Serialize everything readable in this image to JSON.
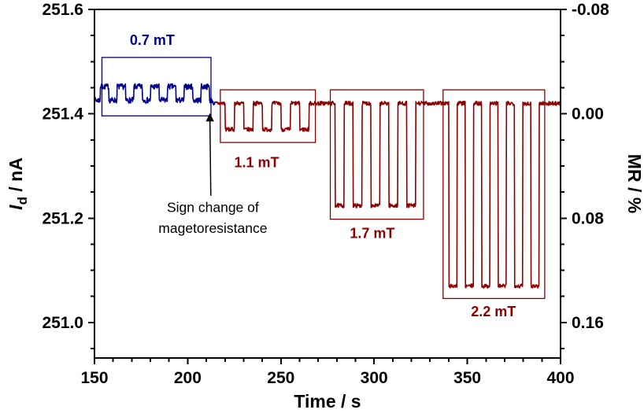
{
  "figure": {
    "background": "#ffffff"
  },
  "chart_data": {
    "type": "line",
    "title": "",
    "xlabel": "Time / s",
    "ylabel_left": {
      "italic": "I",
      "sub": "d",
      "rest": " / nA"
    },
    "ylabel_right": "MR / %",
    "xlim": [
      150,
      400
    ],
    "ylim": [
      250.932,
      251.6
    ],
    "x_ticks": [
      150,
      200,
      250,
      300,
      350,
      400
    ],
    "x_minor_step": 10,
    "y_ticks_left": [
      251.0,
      251.2,
      251.4,
      251.6
    ],
    "y_minor_step": 0.05,
    "y_ticks_right": [
      {
        "label": "-0.08",
        "at": 251.6
      },
      {
        "label": "0.00",
        "at": 251.4
      },
      {
        "label": "0.08",
        "at": 251.2
      },
      {
        "label": "0.16",
        "at": 251.0
      }
    ],
    "baseline": 251.42,
    "noise": 0.004,
    "color_switch_t": 215,
    "colors": {
      "blue": "#00008b",
      "red": "#8b0000",
      "axis": "#000000",
      "text": "#000000"
    },
    "segments": [
      {
        "label": "0.7 mT",
        "color": "blue",
        "t0": 150,
        "t1": 213.5,
        "base_offset": 0.006,
        "pulse_start": 153,
        "period": 9,
        "width": 4.6,
        "n": 7,
        "amp": 0.026,
        "noise": 0.0055,
        "box": {
          "x0": 154,
          "x1": 212.5,
          "y0": 251.396,
          "y1": 251.508
        },
        "label_x": 181,
        "label_y": 251.532
      },
      {
        "label": "1.1 mT",
        "color": "red",
        "t0": 218,
        "t1": 269,
        "base_offset": 0,
        "pulse_start": 220,
        "period": 10,
        "width": 5,
        "n": 5,
        "amp": -0.05,
        "noise": 0.004,
        "box": {
          "x0": 217.5,
          "x1": 268.5,
          "y0": 251.345,
          "y1": 251.446
        },
        "label_x": 237,
        "label_y": 251.298
      },
      {
        "label": "1.7 mT",
        "color": "red",
        "t0": 277,
        "t1": 327,
        "base_offset": 0,
        "pulse_start": 279,
        "period": 9.6,
        "width": 4.8,
        "n": 5,
        "amp": -0.196,
        "noise": 0.004,
        "box": {
          "x0": 276.5,
          "x1": 326.5,
          "y0": 251.198,
          "y1": 251.446
        },
        "label_x": 299,
        "label_y": 251.162
      },
      {
        "label": "2.2 mT",
        "color": "red",
        "t0": 338,
        "t1": 392,
        "base_offset": 0,
        "pulse_start": 340,
        "period": 8.8,
        "width": 4.4,
        "n": 6,
        "amp": -0.35,
        "noise": 0.004,
        "box": {
          "x0": 337,
          "x1": 391.5,
          "y0": 251.046,
          "y1": 251.446
        },
        "label_x": 364,
        "label_y": 251.012
      }
    ],
    "annotation": {
      "lines": [
        "Sign change of",
        "magetoresistance"
      ],
      "x": 213.5,
      "line_y": [
        251.212,
        251.172
      ],
      "arrow": {
        "from_x": 212.4,
        "from_y": 251.243,
        "to_x": 211.9,
        "to_y": 251.398
      }
    }
  }
}
